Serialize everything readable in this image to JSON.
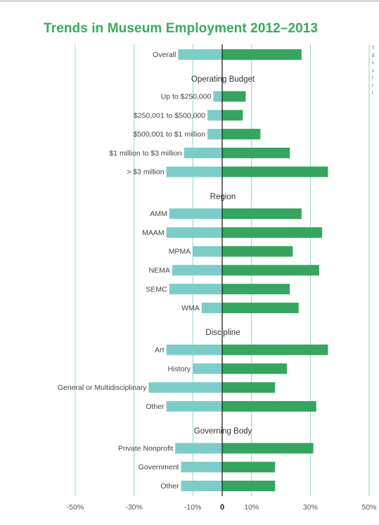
{
  "chart_data": {
    "type": "bar",
    "orientation": "horizontal",
    "title": "Trends in Museum Employment 2012–2013",
    "xlim": [
      -50,
      50
    ],
    "x_ticks": [
      "-50%",
      "-30%",
      "-10%",
      "0",
      "10%",
      "30%",
      "50%"
    ],
    "grid": "vertical",
    "colors": {
      "decrease": "#7ccdc8",
      "increase": "#35a55f",
      "gridline": "#8fd3d0",
      "title": "#3aaa5c"
    },
    "groups": [
      {
        "heading": "",
        "items": [
          {
            "label": "Overall",
            "decrease": -15,
            "increase": 27
          }
        ]
      },
      {
        "heading": "Operating Budget",
        "items": [
          {
            "label": "Up to $250,000",
            "decrease": -3,
            "increase": 8
          },
          {
            "label": "$250,001 to $500,000",
            "decrease": -5,
            "increase": 7
          },
          {
            "label": "$500,001 to $1 million",
            "decrease": -5,
            "increase": 13
          },
          {
            "label": "$1 million to $3 million",
            "decrease": -13,
            "increase": 23
          },
          {
            "label": "> $3 million",
            "decrease": -19,
            "increase": 36
          }
        ]
      },
      {
        "heading": "Region",
        "items": [
          {
            "label": "AMM",
            "decrease": -18,
            "increase": 27
          },
          {
            "label": "MAAM",
            "decrease": -19,
            "increase": 34
          },
          {
            "label": "MPMA",
            "decrease": -10,
            "increase": 24
          },
          {
            "label": "NEMA",
            "decrease": -17,
            "increase": 33
          },
          {
            "label": "SEMC",
            "decrease": -18,
            "increase": 23
          },
          {
            "label": "WMA",
            "decrease": -7,
            "increase": 26
          }
        ]
      },
      {
        "heading": "Discipline",
        "items": [
          {
            "label": "Art",
            "decrease": -19,
            "increase": 36
          },
          {
            "label": "History",
            "decrease": -10,
            "increase": 22
          },
          {
            "label": "General or Multidisciplinary",
            "decrease": -25,
            "increase": 18
          },
          {
            "label": "Other",
            "decrease": -19,
            "increase": 32
          }
        ]
      },
      {
        "heading": "Governing Body",
        "items": [
          {
            "label": "Private Nonprofit",
            "decrease": -16,
            "increase": 31
          },
          {
            "label": "Government",
            "decrease": -14,
            "increase": 18
          },
          {
            "label": "Other",
            "decrease": -14,
            "increase": 18
          }
        ]
      }
    ]
  },
  "side_text": [
    "T",
    "E",
    "c",
    "c",
    "t",
    "r",
    "t"
  ]
}
